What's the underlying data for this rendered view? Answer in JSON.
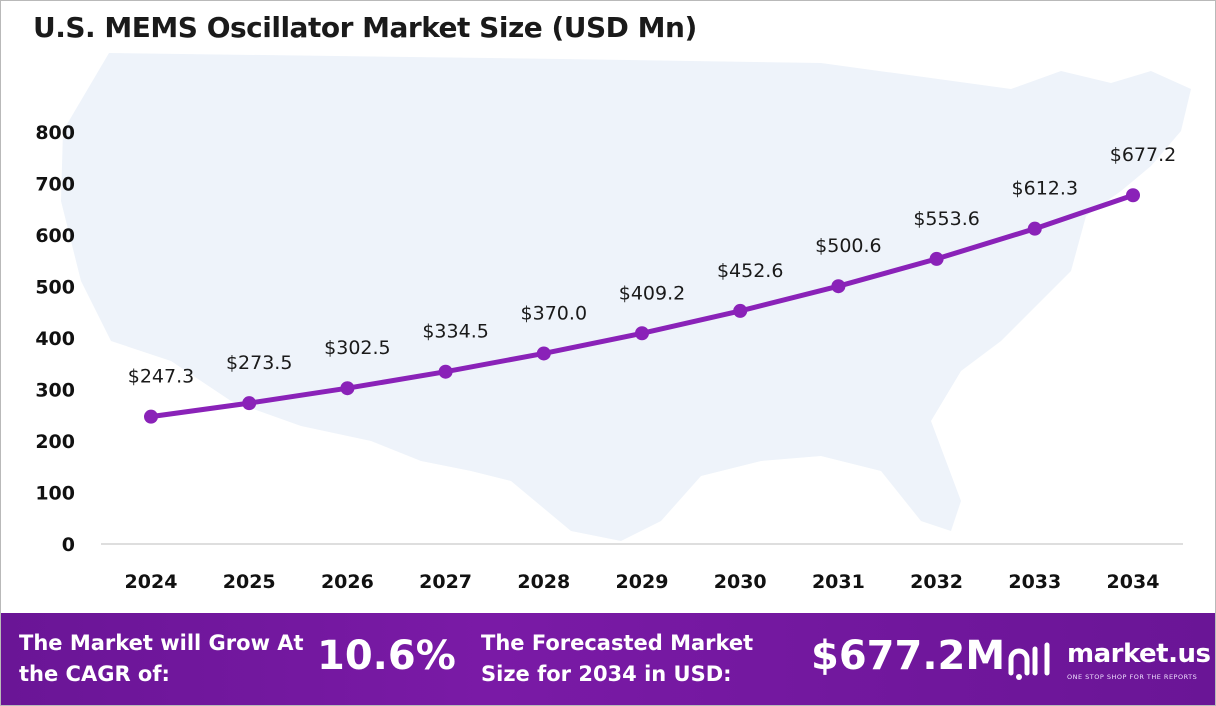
{
  "chart_data": {
    "type": "line",
    "title": "U.S. MEMS Oscillator Market Size (USD Mn)",
    "categories": [
      "2024",
      "2025",
      "2026",
      "2027",
      "2028",
      "2029",
      "2030",
      "2031",
      "2032",
      "2033",
      "2034"
    ],
    "series": [
      {
        "values": [
          247.3,
          273.5,
          302.5,
          334.5,
          370.0,
          409.2,
          452.6,
          500.6,
          553.6,
          612.3,
          677.2
        ],
        "labels": [
          "$247.3",
          "$273.5",
          "$302.5",
          "$334.5",
          "$370.0",
          "$409.2",
          "$452.6",
          "$500.6",
          "$553.6",
          "$612.3",
          "$677.2"
        ]
      }
    ],
    "ylim": [
      0,
      800
    ],
    "yticks": [
      0,
      100,
      200,
      300,
      400,
      500,
      600,
      700,
      800
    ],
    "grid": false,
    "legend": "none",
    "line_color": "#8a22b8",
    "background": "map-of-usa-faint"
  },
  "footer": {
    "cagr_text": "The Market will Grow At the CAGR of:",
    "cagr_value": "10.6%",
    "forecast_text": "The Forecasted Market Size for 2034 in USD:",
    "forecast_value": "$677.2M",
    "brand": "market.us",
    "brand_tagline": "ONE STOP SHOP FOR THE REPORTS",
    "bg_color": "#6a1596"
  }
}
